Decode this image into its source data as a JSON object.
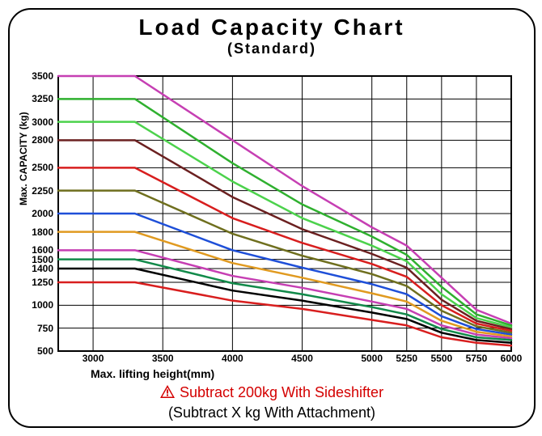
{
  "title": "Load Capacity Chart",
  "subtitle": "(Standard)",
  "xlabel": "Max. lifting height(mm)",
  "ylabel": "Max. CAPACITY (kg)",
  "footnote1": "Subtract 200kg With Sideshifter",
  "footnote2": "(Subtract X kg With Attachment)",
  "footnote1_color": "#d40000",
  "footnote2_color": "#000000",
  "background_color": "#ffffff",
  "border_color": "#000000",
  "grid_color": "#000000",
  "grid_width": 1,
  "axis_width": 2,
  "line_width": 2.5,
  "title_fontsize": 28,
  "subtitle_fontsize": 18,
  "label_fontsize": 12,
  "tick_fontsize": 12,
  "footnote_fontsize": 18,
  "x": {
    "min": 2750,
    "max": 6000,
    "ticks": [
      3000,
      3500,
      4000,
      4500,
      5000,
      5250,
      5500,
      5750,
      6000
    ]
  },
  "y": {
    "min": 500,
    "max": 3500,
    "ticks": [
      500,
      750,
      1000,
      1250,
      1400,
      1500,
      1600,
      1800,
      2000,
      2250,
      2500,
      2800,
      3000,
      3250,
      3500
    ]
  },
  "series": [
    {
      "name": "3500",
      "color": "#c63fb3",
      "points": [
        [
          2750,
          3500
        ],
        [
          3300,
          3500
        ],
        [
          4000,
          2800
        ],
        [
          4500,
          2300
        ],
        [
          5000,
          1850
        ],
        [
          5250,
          1650
        ],
        [
          5500,
          1300
        ],
        [
          5750,
          950
        ],
        [
          6000,
          800
        ]
      ]
    },
    {
      "name": "3250",
      "color": "#2fb02f",
      "points": [
        [
          2750,
          3250
        ],
        [
          3300,
          3250
        ],
        [
          4000,
          2550
        ],
        [
          4500,
          2100
        ],
        [
          5000,
          1750
        ],
        [
          5250,
          1550
        ],
        [
          5500,
          1200
        ],
        [
          5750,
          900
        ],
        [
          6000,
          780
        ]
      ]
    },
    {
      "name": "3000",
      "color": "#4cd24c",
      "points": [
        [
          2750,
          3000
        ],
        [
          3300,
          3000
        ],
        [
          4000,
          2350
        ],
        [
          4500,
          1950
        ],
        [
          5000,
          1650
        ],
        [
          5250,
          1480
        ],
        [
          5500,
          1120
        ],
        [
          5750,
          860
        ],
        [
          6000,
          760
        ]
      ]
    },
    {
      "name": "2800",
      "color": "#6b2020",
      "points": [
        [
          2750,
          2800
        ],
        [
          3300,
          2800
        ],
        [
          4000,
          2180
        ],
        [
          4500,
          1830
        ],
        [
          5000,
          1560
        ],
        [
          5250,
          1410
        ],
        [
          5500,
          1060
        ],
        [
          5750,
          830
        ],
        [
          6000,
          740
        ]
      ]
    },
    {
      "name": "2500",
      "color": "#d81e1e",
      "points": [
        [
          2750,
          2500
        ],
        [
          3300,
          2500
        ],
        [
          4000,
          1950
        ],
        [
          4500,
          1680
        ],
        [
          5000,
          1450
        ],
        [
          5250,
          1310
        ],
        [
          5500,
          1000
        ],
        [
          5750,
          800
        ],
        [
          6000,
          720
        ]
      ]
    },
    {
      "name": "2250",
      "color": "#6f6f1e",
      "points": [
        [
          2750,
          2250
        ],
        [
          3300,
          2250
        ],
        [
          4000,
          1780
        ],
        [
          4500,
          1540
        ],
        [
          5000,
          1340
        ],
        [
          5250,
          1210
        ],
        [
          5500,
          940
        ],
        [
          5750,
          770
        ],
        [
          6000,
          700
        ]
      ]
    },
    {
      "name": "2000",
      "color": "#1e4fd8",
      "points": [
        [
          2750,
          2000
        ],
        [
          3300,
          2000
        ],
        [
          4000,
          1600
        ],
        [
          4500,
          1410
        ],
        [
          5000,
          1230
        ],
        [
          5250,
          1120
        ],
        [
          5500,
          880
        ],
        [
          5750,
          740
        ],
        [
          6000,
          680
        ]
      ]
    },
    {
      "name": "1800",
      "color": "#e09a20",
      "points": [
        [
          2750,
          1800
        ],
        [
          3300,
          1800
        ],
        [
          4000,
          1460
        ],
        [
          4500,
          1300
        ],
        [
          5000,
          1130
        ],
        [
          5250,
          1040
        ],
        [
          5500,
          830
        ],
        [
          5750,
          710
        ],
        [
          6000,
          660
        ]
      ]
    },
    {
      "name": "1600",
      "color": "#c63fb3",
      "points": [
        [
          2750,
          1600
        ],
        [
          3300,
          1600
        ],
        [
          4000,
          1320
        ],
        [
          4500,
          1190
        ],
        [
          5000,
          1040
        ],
        [
          5250,
          960
        ],
        [
          5500,
          780
        ],
        [
          5750,
          680
        ],
        [
          6000,
          640
        ]
      ]
    },
    {
      "name": "1500",
      "color": "#128a4a",
      "points": [
        [
          2750,
          1500
        ],
        [
          3300,
          1500
        ],
        [
          4000,
          1240
        ],
        [
          4500,
          1120
        ],
        [
          5000,
          980
        ],
        [
          5250,
          900
        ],
        [
          5500,
          740
        ],
        [
          5750,
          650
        ],
        [
          6000,
          620
        ]
      ]
    },
    {
      "name": "1400",
      "color": "#000000",
      "points": [
        [
          2750,
          1400
        ],
        [
          3300,
          1400
        ],
        [
          4000,
          1160
        ],
        [
          4500,
          1050
        ],
        [
          5000,
          920
        ],
        [
          5250,
          850
        ],
        [
          5500,
          700
        ],
        [
          5750,
          620
        ],
        [
          6000,
          590
        ]
      ]
    },
    {
      "name": "1250",
      "color": "#d81e1e",
      "points": [
        [
          2750,
          1250
        ],
        [
          3300,
          1250
        ],
        [
          4000,
          1050
        ],
        [
          4500,
          960
        ],
        [
          5000,
          840
        ],
        [
          5250,
          780
        ],
        [
          5500,
          650
        ],
        [
          5750,
          590
        ],
        [
          6000,
          560
        ]
      ]
    }
  ]
}
